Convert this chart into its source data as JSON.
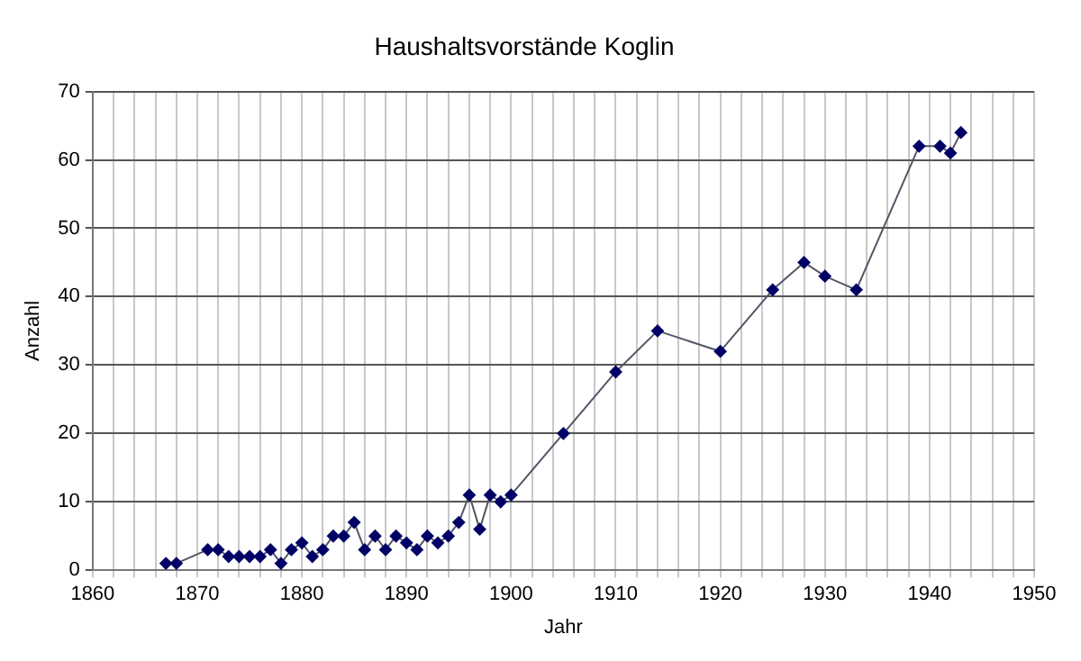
{
  "chart_data": {
    "type": "line",
    "title": "Haushaltsvorstände Koglin",
    "xlabel": "Jahr",
    "ylabel": "Anzahl",
    "x": [
      1867,
      1868,
      1871,
      1872,
      1873,
      1874,
      1875,
      1876,
      1877,
      1878,
      1879,
      1880,
      1881,
      1882,
      1883,
      1884,
      1885,
      1886,
      1887,
      1888,
      1889,
      1890,
      1891,
      1892,
      1893,
      1894,
      1895,
      1896,
      1897,
      1898,
      1899,
      1900,
      1905,
      1910,
      1914,
      1920,
      1925,
      1928,
      1930,
      1933,
      1939,
      1941,
      1942,
      1943
    ],
    "series": [
      {
        "color": "#000066",
        "values": [
          1,
          1,
          3,
          3,
          2,
          2,
          2,
          2,
          3,
          1,
          3,
          4,
          2,
          3,
          5,
          5,
          7,
          3,
          5,
          3,
          5,
          4,
          3,
          5,
          4,
          5,
          7,
          11,
          6,
          11,
          10,
          11,
          20,
          29,
          35,
          32,
          41,
          45,
          43,
          41,
          62,
          62,
          61,
          64
        ]
      }
    ],
    "xlim": [
      1860,
      1950
    ],
    "xticks": [
      1860,
      {
        "value": 1862,
        "label": null
      },
      {
        "value": 1864,
        "label": null
      },
      {
        "value": 1866,
        "label": null
      },
      {
        "value": 1868,
        "label": null
      },
      1870,
      {
        "value": 1872,
        "label": null
      },
      {
        "value": 1874,
        "label": null
      },
      {
        "value": 1876,
        "label": null
      },
      {
        "value": 1878,
        "label": null
      },
      1880,
      {
        "value": 1882,
        "label": null
      },
      {
        "value": 1884,
        "label": null
      },
      {
        "value": 1886,
        "label": null
      },
      {
        "value": 1888,
        "label": null
      },
      1890,
      {
        "value": 1892,
        "label": null
      },
      {
        "value": 1894,
        "label": null
      },
      {
        "value": 1896,
        "label": null
      },
      {
        "value": 1898,
        "label": null
      },
      1900,
      {
        "value": 1902,
        "label": null
      },
      {
        "value": 1904,
        "label": null
      },
      {
        "value": 1906,
        "label": null
      },
      {
        "value": 1908,
        "label": null
      },
      1910,
      {
        "value": 1912,
        "label": null
      },
      {
        "value": 1914,
        "label": null
      },
      {
        "value": 1916,
        "label": null
      },
      {
        "value": 1918,
        "label": null
      },
      1920,
      {
        "value": 1922,
        "label": null
      },
      {
        "value": 1924,
        "label": null
      },
      {
        "value": 1926,
        "label": null
      },
      {
        "value": 1928,
        "label": null
      },
      1930,
      {
        "value": 1932,
        "label": null
      },
      {
        "value": 1934,
        "label": null
      },
      {
        "value": 1936,
        "label": null
      },
      {
        "value": 1938,
        "label": null
      },
      1940,
      {
        "value": 1942,
        "label": null
      },
      {
        "value": 1944,
        "label": null
      },
      {
        "value": 1946,
        "label": null
      },
      {
        "value": 1948,
        "label": null
      },
      1950
    ],
    "ylim": [
      0,
      70
    ],
    "yticks": [
      0,
      10,
      20,
      30,
      40,
      50,
      60,
      70
    ],
    "grid": true,
    "legend": false,
    "marker": "diamond",
    "line_style": "solid"
  }
}
